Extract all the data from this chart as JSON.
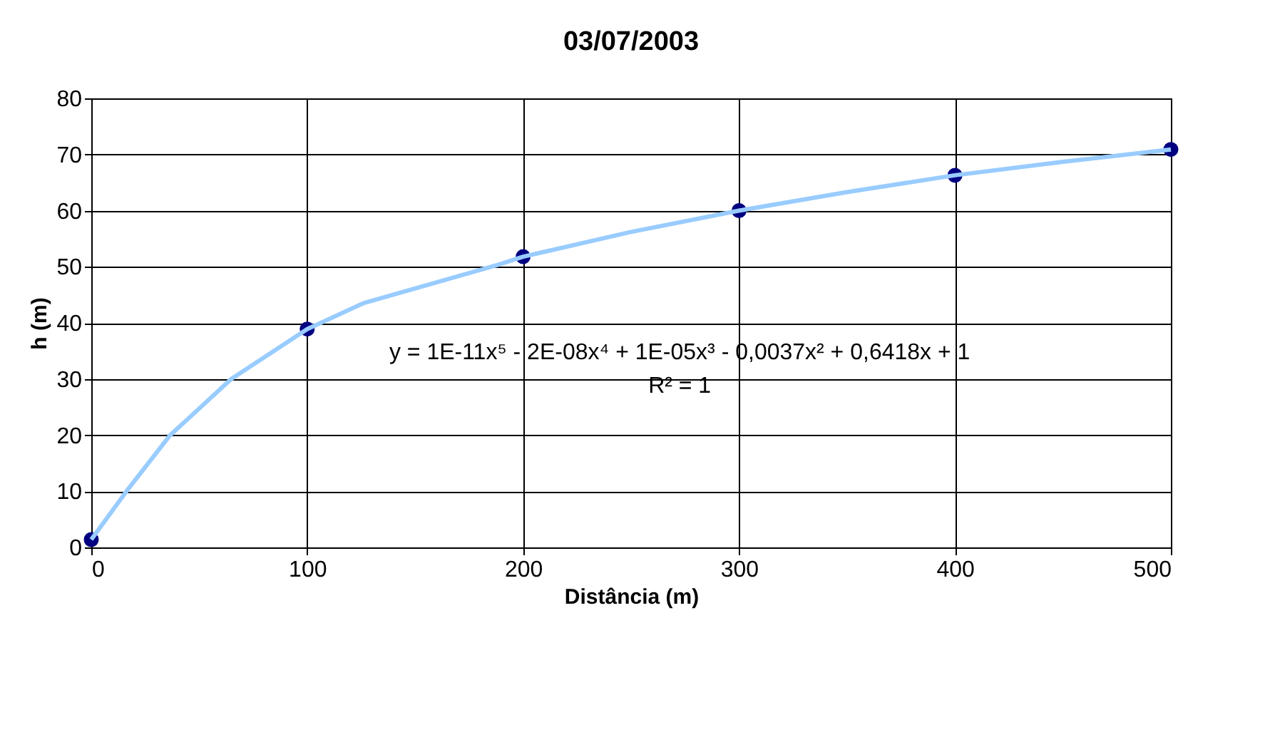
{
  "chart_data": {
    "type": "scatter",
    "title": "03/07/2003",
    "xlabel": "Distância (m)",
    "ylabel": "h (m)",
    "xlim": [
      0,
      500
    ],
    "xticks": [
      0,
      100,
      200,
      300,
      400,
      500
    ],
    "ylim": [
      0,
      80
    ],
    "yticks": [
      0,
      10,
      20,
      30,
      40,
      50,
      60,
      70,
      80
    ],
    "grid": true,
    "series": [
      {
        "marker": "circle",
        "color": "#000080",
        "x": [
          0,
          100,
          200,
          300,
          400,
          500
        ],
        "values": [
          1.4,
          38.9,
          51.8,
          60.0,
          66.3,
          70.9
        ]
      },
      {
        "type": "line",
        "color": "#99ccff",
        "line_style": "solid",
        "x": [
          0,
          16.5,
          36.3,
          64.8,
          100,
          126,
          188,
          200,
          250,
          300,
          350,
          400,
          450,
          500
        ],
        "values": [
          1.4,
          10.1,
          19.9,
          30.0,
          38.9,
          43.5,
          50.3,
          51.8,
          56.2,
          60.0,
          63.3,
          66.3,
          68.7,
          70.9
        ]
      }
    ],
    "annotations": [
      "y = 1E-11x⁵ - 2E-08x⁴ + 1E-05x³ - 0,0037x² + 0,6418x + 1",
      "R² = 1"
    ]
  }
}
